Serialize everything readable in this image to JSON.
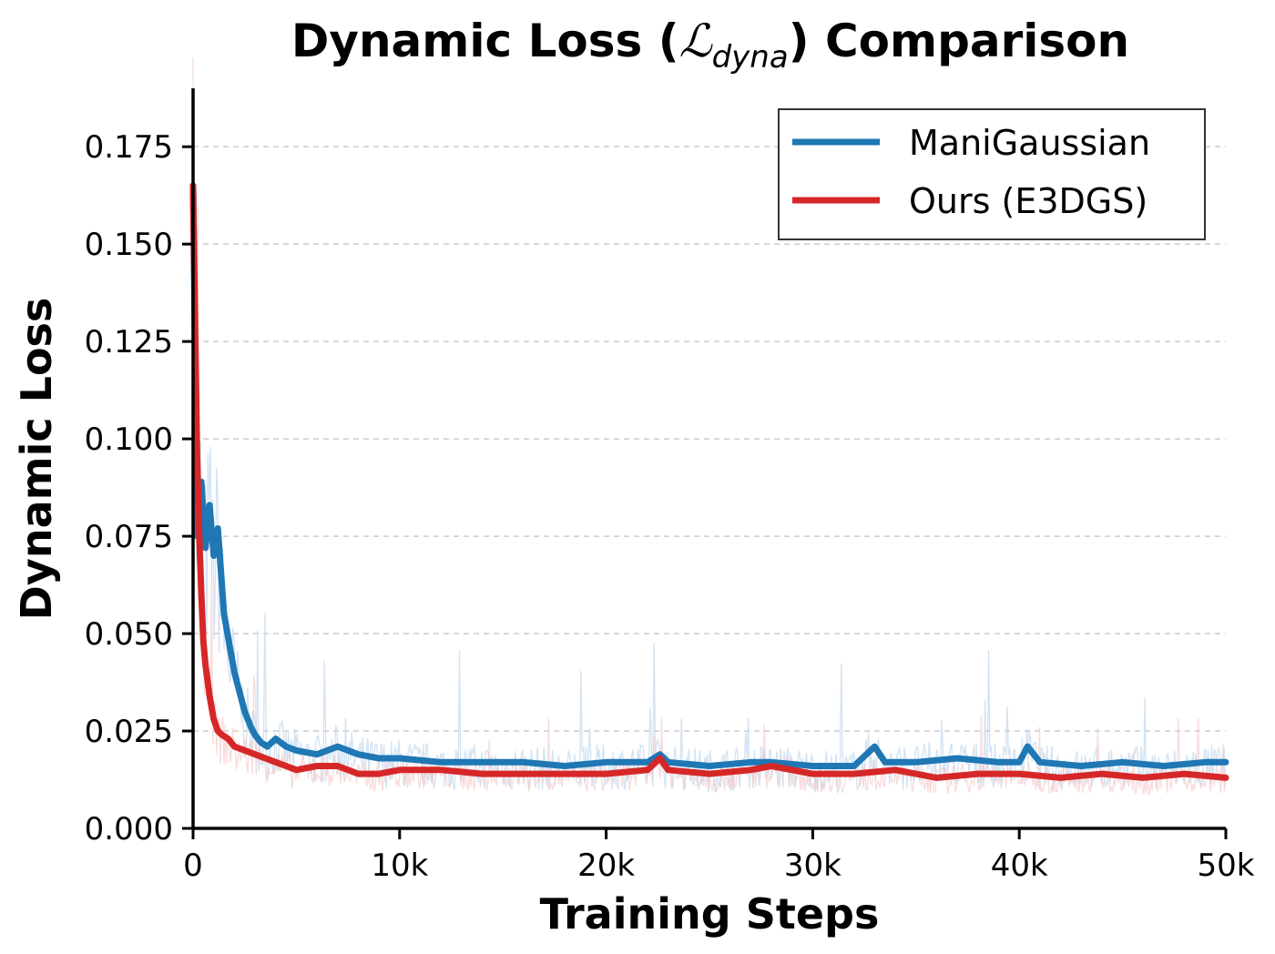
{
  "chart_data": {
    "type": "line",
    "title": {
      "prefix": "Dynamic Loss (",
      "symbol": "ℒ",
      "subscript": "dyna",
      "suffix": ") Comparison"
    },
    "xlabel": "Training Steps",
    "ylabel": "Dynamic Loss",
    "xlim": [
      0,
      50000
    ],
    "ylim": [
      0,
      0.19
    ],
    "x_ticks": [
      0,
      10000,
      20000,
      30000,
      40000,
      50000
    ],
    "x_tick_labels": [
      "0",
      "10k",
      "20k",
      "30k",
      "40k",
      "50k"
    ],
    "y_ticks": [
      0,
      0.025,
      0.05,
      0.075,
      0.1,
      0.125,
      0.15,
      0.175
    ],
    "y_tick_labels": [
      "0.000",
      "0.025",
      "0.050",
      "0.075",
      "0.100",
      "0.125",
      "0.150",
      "0.175"
    ],
    "grid": "horizontal dashed",
    "legend_position": "top-right",
    "series": [
      {
        "name": "ManiGaussian",
        "color": "#1f77b4",
        "raw_color": "#c6dbef",
        "x": [
          0,
          200,
          400,
          600,
          800,
          1000,
          1200,
          1500,
          1800,
          2000,
          2200,
          2500,
          2800,
          3000,
          3300,
          3600,
          4000,
          4500,
          5000,
          6000,
          7000,
          7500,
          8000,
          9000,
          10000,
          12000,
          14000,
          16000,
          18000,
          20000,
          22000,
          22600,
          23000,
          25000,
          27000,
          28000,
          30000,
          32000,
          33000,
          33500,
          35000,
          37000,
          39000,
          40000,
          40400,
          41000,
          43000,
          45000,
          47000,
          49000,
          50000
        ],
        "values": [
          0.165,
          0.075,
          0.089,
          0.072,
          0.083,
          0.07,
          0.077,
          0.055,
          0.046,
          0.04,
          0.036,
          0.03,
          0.026,
          0.024,
          0.022,
          0.021,
          0.023,
          0.021,
          0.02,
          0.019,
          0.021,
          0.02,
          0.019,
          0.018,
          0.018,
          0.017,
          0.017,
          0.017,
          0.016,
          0.017,
          0.017,
          0.019,
          0.017,
          0.016,
          0.017,
          0.017,
          0.016,
          0.016,
          0.021,
          0.017,
          0.017,
          0.018,
          0.017,
          0.017,
          0.021,
          0.017,
          0.016,
          0.017,
          0.016,
          0.017,
          0.017
        ]
      },
      {
        "name": "Ours (E3DGS)",
        "color": "#d62728",
        "raw_color": "#f4c7c7",
        "x": [
          0,
          100,
          200,
          300,
          400,
          500,
          600,
          700,
          800,
          900,
          1000,
          1200,
          1400,
          1700,
          2000,
          2500,
          3000,
          3500,
          4000,
          4500,
          5000,
          6000,
          7000,
          8000,
          9000,
          10000,
          12000,
          14000,
          16000,
          18000,
          20000,
          22000,
          22600,
          23000,
          25000,
          27000,
          28000,
          30000,
          32000,
          34000,
          36000,
          38000,
          40000,
          42000,
          44000,
          46000,
          48000,
          50000
        ],
        "values": [
          0.165,
          0.128,
          0.095,
          0.075,
          0.06,
          0.048,
          0.042,
          0.038,
          0.034,
          0.031,
          0.028,
          0.025,
          0.024,
          0.023,
          0.021,
          0.02,
          0.019,
          0.018,
          0.017,
          0.016,
          0.015,
          0.016,
          0.016,
          0.014,
          0.014,
          0.015,
          0.015,
          0.014,
          0.014,
          0.014,
          0.014,
          0.015,
          0.018,
          0.015,
          0.014,
          0.015,
          0.016,
          0.014,
          0.014,
          0.015,
          0.013,
          0.014,
          0.014,
          0.013,
          0.014,
          0.013,
          0.014,
          0.013
        ]
      }
    ]
  }
}
